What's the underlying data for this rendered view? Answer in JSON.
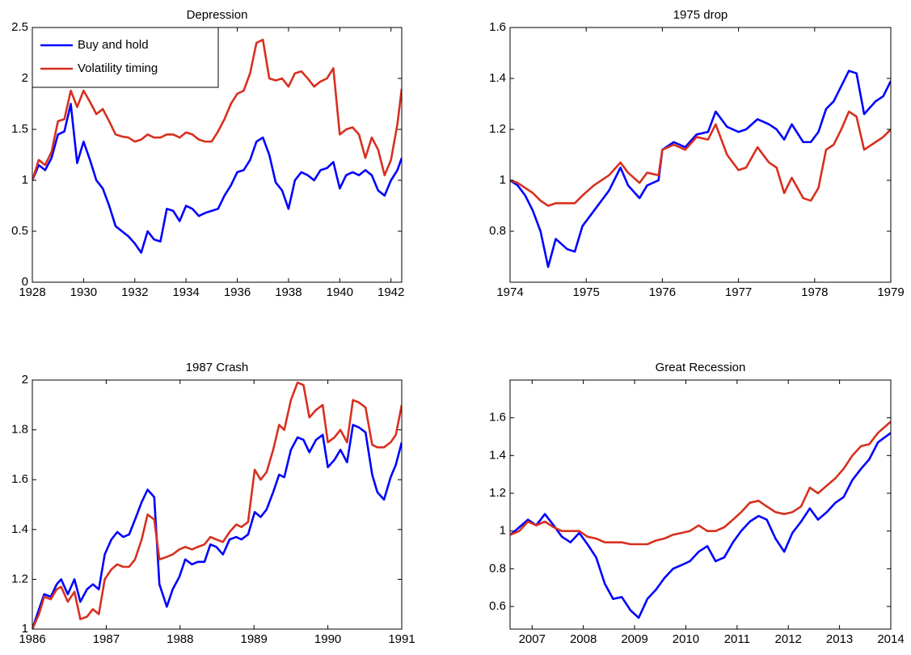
{
  "chart_data": [
    {
      "type": "line",
      "title": "Depression",
      "legend": "upper left",
      "x": [
        1928.0,
        1928.25,
        1928.5,
        1928.75,
        1929.0,
        1929.25,
        1929.5,
        1929.75,
        1930.0,
        1930.25,
        1930.5,
        1930.75,
        1931.0,
        1931.25,
        1931.5,
        1931.75,
        1932.0,
        1932.25,
        1932.5,
        1932.75,
        1933.0,
        1933.25,
        1933.5,
        1933.75,
        1934.0,
        1934.25,
        1934.5,
        1934.75,
        1935.0,
        1935.25,
        1935.5,
        1935.75,
        1936.0,
        1936.25,
        1936.5,
        1936.75,
        1937.0,
        1937.25,
        1937.5,
        1937.75,
        1938.0,
        1938.25,
        1938.5,
        1938.75,
        1939.0,
        1939.25,
        1939.5,
        1939.75,
        1940.0,
        1940.25,
        1940.5,
        1940.75,
        1941.0,
        1941.25,
        1941.5,
        1941.75,
        1942.0,
        1942.25,
        1942.42
      ],
      "series": [
        {
          "name": "Buy and hold",
          "color": "#0000ff",
          "values": [
            1.0,
            1.15,
            1.1,
            1.22,
            1.45,
            1.48,
            1.75,
            1.17,
            1.38,
            1.2,
            1.0,
            0.92,
            0.75,
            0.55,
            0.5,
            0.45,
            0.38,
            0.29,
            0.5,
            0.42,
            0.4,
            0.72,
            0.7,
            0.6,
            0.75,
            0.72,
            0.65,
            0.68,
            0.7,
            0.72,
            0.85,
            0.95,
            1.08,
            1.1,
            1.2,
            1.38,
            1.42,
            1.25,
            0.98,
            0.9,
            0.72,
            1.0,
            1.08,
            1.05,
            1.0,
            1.1,
            1.12,
            1.18,
            0.92,
            1.05,
            1.08,
            1.05,
            1.1,
            1.05,
            0.9,
            0.85,
            1.0,
            1.1,
            1.22
          ]
        },
        {
          "name": "Volatility timing",
          "color": "#d7301f",
          "values": [
            1.0,
            1.2,
            1.15,
            1.28,
            1.58,
            1.6,
            1.88,
            1.72,
            1.88,
            1.77,
            1.65,
            1.7,
            1.58,
            1.45,
            1.43,
            1.42,
            1.38,
            1.4,
            1.45,
            1.42,
            1.42,
            1.45,
            1.45,
            1.42,
            1.47,
            1.45,
            1.4,
            1.38,
            1.38,
            1.48,
            1.6,
            1.75,
            1.85,
            1.88,
            2.05,
            2.35,
            2.38,
            2.0,
            1.98,
            2.0,
            1.92,
            2.05,
            2.07,
            2.0,
            1.92,
            1.97,
            2.0,
            2.1,
            1.45,
            1.5,
            1.52,
            1.45,
            1.22,
            1.42,
            1.3,
            1.05,
            1.2,
            1.55,
            1.9
          ]
        }
      ],
      "xlim": [
        1928,
        1942.42
      ],
      "ylim": [
        0,
        2.5
      ],
      "xticks": [
        1928,
        1930,
        1932,
        1934,
        1936,
        1938,
        1940,
        1942
      ],
      "yticks": [
        0,
        0.5,
        1,
        1.5,
        2,
        2.5
      ]
    },
    {
      "type": "line",
      "title": "1975 drop",
      "x": [
        1974.0,
        1974.1,
        1974.2,
        1974.3,
        1974.4,
        1974.5,
        1974.6,
        1974.75,
        1974.85,
        1974.95,
        1975.1,
        1975.3,
        1975.45,
        1975.55,
        1975.7,
        1975.8,
        1975.95,
        1976.0,
        1976.15,
        1976.3,
        1976.45,
        1976.6,
        1976.7,
        1976.85,
        1977.0,
        1977.1,
        1977.25,
        1977.4,
        1977.5,
        1977.6,
        1977.7,
        1977.85,
        1977.95,
        1978.05,
        1978.15,
        1978.25,
        1978.35,
        1978.45,
        1978.55,
        1978.65,
        1978.8,
        1978.9,
        1979.0
      ],
      "series": [
        {
          "name": "Buy and hold",
          "color": "#0000ff",
          "values": [
            1.0,
            0.98,
            0.94,
            0.88,
            0.8,
            0.66,
            0.77,
            0.73,
            0.72,
            0.82,
            0.88,
            0.96,
            1.05,
            0.98,
            0.93,
            0.98,
            1.0,
            1.12,
            1.15,
            1.13,
            1.18,
            1.19,
            1.27,
            1.21,
            1.19,
            1.2,
            1.24,
            1.22,
            1.2,
            1.16,
            1.22,
            1.15,
            1.15,
            1.19,
            1.28,
            1.31,
            1.37,
            1.43,
            1.42,
            1.26,
            1.31,
            1.33,
            1.39
          ]
        },
        {
          "name": "Volatility timing",
          "color": "#d7301f",
          "values": [
            1.0,
            0.99,
            0.97,
            0.95,
            0.92,
            0.9,
            0.91,
            0.91,
            0.91,
            0.94,
            0.98,
            1.02,
            1.07,
            1.03,
            0.99,
            1.03,
            1.02,
            1.12,
            1.14,
            1.12,
            1.17,
            1.16,
            1.22,
            1.1,
            1.04,
            1.05,
            1.13,
            1.07,
            1.05,
            0.95,
            1.01,
            0.93,
            0.92,
            0.97,
            1.12,
            1.14,
            1.2,
            1.27,
            1.25,
            1.12,
            1.15,
            1.17,
            1.2
          ]
        }
      ],
      "xlim": [
        1974,
        1979
      ],
      "ylim": [
        0.6,
        1.6
      ],
      "xticks": [
        1974,
        1975,
        1976,
        1977,
        1978,
        1979
      ],
      "yticks": [
        0.8,
        1,
        1.2,
        1.4,
        1.6
      ]
    },
    {
      "type": "line",
      "title": "1987 Crash",
      "x": [
        1986.0,
        1986.09,
        1986.16,
        1986.25,
        1986.33,
        1986.39,
        1986.48,
        1986.57,
        1986.65,
        1986.74,
        1986.82,
        1986.9,
        1986.98,
        1987.07,
        1987.15,
        1987.23,
        1987.31,
        1987.39,
        1987.48,
        1987.56,
        1987.65,
        1987.72,
        1987.82,
        1987.9,
        1987.99,
        1988.07,
        1988.16,
        1988.24,
        1988.33,
        1988.41,
        1988.49,
        1988.58,
        1988.67,
        1988.76,
        1988.83,
        1988.92,
        1989.01,
        1989.09,
        1989.17,
        1989.26,
        1989.34,
        1989.41,
        1989.5,
        1989.59,
        1989.67,
        1989.75,
        1989.84,
        1989.93,
        1990.0,
        1990.09,
        1990.17,
        1990.26,
        1990.34,
        1990.42,
        1990.51,
        1990.6,
        1990.67,
        1990.76,
        1990.85,
        1990.92,
        1991.0
      ],
      "series": [
        {
          "name": "Buy and hold",
          "color": "#0000ff",
          "values": [
            1.0,
            1.08,
            1.14,
            1.13,
            1.18,
            1.2,
            1.14,
            1.2,
            1.11,
            1.16,
            1.18,
            1.16,
            1.3,
            1.36,
            1.39,
            1.37,
            1.38,
            1.44,
            1.51,
            1.56,
            1.53,
            1.18,
            1.09,
            1.16,
            1.21,
            1.28,
            1.26,
            1.27,
            1.27,
            1.34,
            1.33,
            1.3,
            1.36,
            1.37,
            1.36,
            1.38,
            1.47,
            1.45,
            1.48,
            1.55,
            1.62,
            1.61,
            1.72,
            1.77,
            1.76,
            1.71,
            1.76,
            1.78,
            1.65,
            1.68,
            1.72,
            1.67,
            1.82,
            1.81,
            1.79,
            1.62,
            1.55,
            1.52,
            1.61,
            1.66,
            1.75
          ]
        },
        {
          "name": "Volatility timing",
          "color": "#d7301f",
          "values": [
            1.0,
            1.06,
            1.13,
            1.12,
            1.16,
            1.17,
            1.11,
            1.15,
            1.04,
            1.05,
            1.08,
            1.06,
            1.2,
            1.24,
            1.26,
            1.25,
            1.25,
            1.28,
            1.36,
            1.46,
            1.44,
            1.28,
            1.29,
            1.3,
            1.32,
            1.33,
            1.32,
            1.33,
            1.34,
            1.37,
            1.36,
            1.35,
            1.39,
            1.42,
            1.41,
            1.43,
            1.64,
            1.6,
            1.63,
            1.72,
            1.82,
            1.8,
            1.92,
            1.99,
            1.98,
            1.85,
            1.88,
            1.9,
            1.75,
            1.77,
            1.8,
            1.75,
            1.92,
            1.91,
            1.89,
            1.74,
            1.73,
            1.73,
            1.75,
            1.78,
            1.9
          ]
        }
      ],
      "xlim": [
        1986,
        1991
      ],
      "ylim": [
        1,
        2
      ],
      "xticks": [
        1986,
        1987,
        1988,
        1989,
        1990,
        1991
      ],
      "yticks": [
        1,
        1.2,
        1.4,
        1.6,
        1.8,
        2
      ]
    },
    {
      "type": "line",
      "title": "Great Recession",
      "x": [
        2006.58,
        2006.75,
        2006.92,
        2007.08,
        2007.25,
        2007.42,
        2007.58,
        2007.75,
        2007.92,
        2008.08,
        2008.25,
        2008.42,
        2008.58,
        2008.75,
        2008.92,
        2009.08,
        2009.25,
        2009.42,
        2009.58,
        2009.75,
        2009.92,
        2010.08,
        2010.25,
        2010.42,
        2010.58,
        2010.75,
        2010.92,
        2011.08,
        2011.25,
        2011.42,
        2011.58,
        2011.75,
        2011.92,
        2012.08,
        2012.25,
        2012.42,
        2012.58,
        2012.75,
        2012.92,
        2013.08,
        2013.25,
        2013.42,
        2013.58,
        2013.75,
        2014.0
      ],
      "series": [
        {
          "name": "Buy and hold",
          "color": "#0000ff",
          "values": [
            0.98,
            1.02,
            1.06,
            1.03,
            1.09,
            1.03,
            0.97,
            0.94,
            0.99,
            0.93,
            0.86,
            0.72,
            0.64,
            0.65,
            0.58,
            0.54,
            0.64,
            0.69,
            0.75,
            0.8,
            0.82,
            0.84,
            0.89,
            0.92,
            0.84,
            0.86,
            0.94,
            1.0,
            1.05,
            1.08,
            1.06,
            0.96,
            0.89,
            0.99,
            1.05,
            1.12,
            1.06,
            1.1,
            1.15,
            1.18,
            1.27,
            1.33,
            1.38,
            1.47,
            1.52
          ]
        },
        {
          "name": "Volatility timing",
          "color": "#d7301f",
          "values": [
            0.98,
            1.0,
            1.05,
            1.03,
            1.05,
            1.02,
            1.0,
            1.0,
            1.0,
            0.97,
            0.96,
            0.94,
            0.94,
            0.94,
            0.93,
            0.93,
            0.93,
            0.95,
            0.96,
            0.98,
            0.99,
            1.0,
            1.03,
            1.0,
            1.0,
            1.02,
            1.06,
            1.1,
            1.15,
            1.16,
            1.13,
            1.1,
            1.09,
            1.1,
            1.13,
            1.23,
            1.2,
            1.24,
            1.28,
            1.33,
            1.4,
            1.45,
            1.46,
            1.52,
            1.58
          ]
        }
      ],
      "xlim": [
        2006.57,
        2014
      ],
      "ylim": [
        0.48,
        1.8
      ],
      "xticks": [
        2007,
        2008,
        2009,
        2010,
        2011,
        2012,
        2013,
        2014
      ],
      "yticks": [
        0.6,
        0.8,
        1,
        1.2,
        1.4,
        1.6
      ]
    }
  ]
}
